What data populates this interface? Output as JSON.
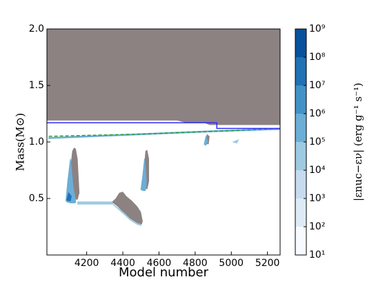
{
  "chart_data": {
    "type": "kippenhahn",
    "xlabel": "Model number",
    "ylabel": "Mass(M⊙)",
    "xlim": [
      3980,
      5270
    ],
    "ylim": [
      0,
      2
    ],
    "xticks": [
      4200,
      4400,
      4600,
      4800,
      5000,
      5200
    ],
    "yticks": [
      0.5,
      {
        "value": 1,
        "label": "1.0"
      },
      1.5,
      {
        "value": 2,
        "label": "2.0"
      }
    ],
    "colorbar": {
      "label": "|εnuc−εν|  (erg g⁻¹ s⁻¹)",
      "lim": [
        10,
        1000000000
      ],
      "log": true,
      "ticks": [
        {
          "value": 10,
          "label": "10¹"
        },
        {
          "value": 100,
          "label": "10²"
        },
        {
          "value": 1000,
          "label": "10³"
        },
        {
          "value": 10000,
          "label": "10⁴"
        },
        {
          "value": 100000,
          "label": "10⁵"
        },
        {
          "value": 1000000,
          "label": "10⁶"
        },
        {
          "value": 10000000,
          "label": "10⁷"
        },
        {
          "value": 100000000,
          "label": "10⁸"
        },
        {
          "value": 1000000000,
          "label": "10⁹"
        }
      ],
      "colors": [
        "#f7fbff",
        "#deebf7",
        "#c6dbef",
        "#9ecae1",
        "#6baed6",
        "#4292c6",
        "#2171b5",
        "#08519c"
      ]
    },
    "contours": [
      {
        "level": 100000,
        "x": [
          3990,
          4300,
          4600,
          4900,
          5270,
          5270,
          4900,
          4600,
          4300,
          3990
        ],
        "y": [
          1.04,
          1.06,
          1.08,
          1.1,
          1.12,
          1.11,
          1.09,
          1.07,
          1.05,
          1.03
        ]
      },
      {
        "level": 100000,
        "x": [
          4085,
          4095,
          4110,
          4125,
          4140,
          4135,
          4110,
          4090
        ],
        "y": [
          0.48,
          0.65,
          0.85,
          0.6,
          0.47,
          0.46,
          0.46,
          0.47
        ]
      },
      {
        "level": 10000000,
        "x": [
          4090,
          4100,
          4115,
          4110,
          4095
        ],
        "y": [
          0.49,
          0.55,
          0.52,
          0.48,
          0.48
        ]
      },
      {
        "level": 10000,
        "x": [
          4150,
          4340,
          4345,
          4150
        ],
        "y": [
          0.47,
          0.47,
          0.45,
          0.45
        ]
      },
      {
        "level": 10000,
        "x": [
          4345,
          4400,
          4440,
          4480,
          4500,
          4500,
          4480,
          4440,
          4400,
          4350
        ],
        "y": [
          0.45,
          0.38,
          0.32,
          0.28,
          0.27,
          0.26,
          0.27,
          0.31,
          0.37,
          0.44
        ]
      },
      {
        "level": 100000,
        "x": [
          4500,
          4510,
          4520,
          4530,
          4525,
          4510
        ],
        "y": [
          0.58,
          0.7,
          0.85,
          0.65,
          0.57,
          0.57
        ]
      },
      {
        "level": 100000,
        "x": [
          4850,
          4860,
          4870,
          4858
        ],
        "y": [
          0.98,
          1.05,
          1.0,
          0.97
        ]
      },
      {
        "level": 10000,
        "x": [
          5010,
          5040,
          5030
        ],
        "y": [
          1.0,
          1.02,
          0.99
        ]
      }
    ],
    "regions": [
      {
        "color": "#8c8282",
        "x": [
          3980,
          4700,
          4750,
          4850,
          4880,
          5270,
          5270,
          3980
        ],
        "y": [
          1.19,
          1.19,
          1.17,
          1.17,
          1.15,
          1.15,
          2,
          2
        ]
      },
      {
        "color": "#8c8282",
        "x": [
          4100,
          4108,
          4120,
          4130,
          4140,
          4150,
          4155,
          4160,
          4150,
          4130,
          4115,
          4105
        ],
        "y": [
          0.55,
          0.75,
          0.92,
          0.95,
          0.94,
          0.85,
          0.7,
          0.55,
          0.49,
          0.49,
          0.5,
          0.52
        ]
      },
      {
        "color": "#8c8282",
        "x": [
          4340,
          4360,
          4380,
          4400,
          4420,
          4450,
          4480,
          4500,
          4510,
          4505,
          4480,
          4440,
          4400,
          4370,
          4345
        ],
        "y": [
          0.47,
          0.5,
          0.55,
          0.56,
          0.52,
          0.48,
          0.43,
          0.38,
          0.3,
          0.27,
          0.28,
          0.32,
          0.38,
          0.43,
          0.46
        ]
      },
      {
        "color": "#8c8282",
        "x": [
          4512,
          4518,
          4525,
          4535,
          4545,
          4545,
          4535,
          4518
        ],
        "y": [
          0.65,
          0.8,
          0.92,
          0.93,
          0.85,
          0.65,
          0.58,
          0.6
        ]
      },
      {
        "color": "#8c8282",
        "x": [
          4858,
          4865,
          4880,
          4875,
          4862
        ],
        "y": [
          1.0,
          1.07,
          1.05,
          0.98,
          0.98
        ]
      }
    ],
    "lines": [
      {
        "color": "#2ca02c",
        "dash": true,
        "x": [
          3990,
          4500,
          5000,
          5270
        ],
        "y": [
          1.05,
          1.07,
          1.1,
          1.12
        ]
      },
      {
        "color": "#2c2cff",
        "dash": false,
        "x": [
          3980,
          4920,
          4920,
          5270
        ],
        "y": [
          1.17,
          1.17,
          1.12,
          1.12
        ]
      }
    ]
  }
}
